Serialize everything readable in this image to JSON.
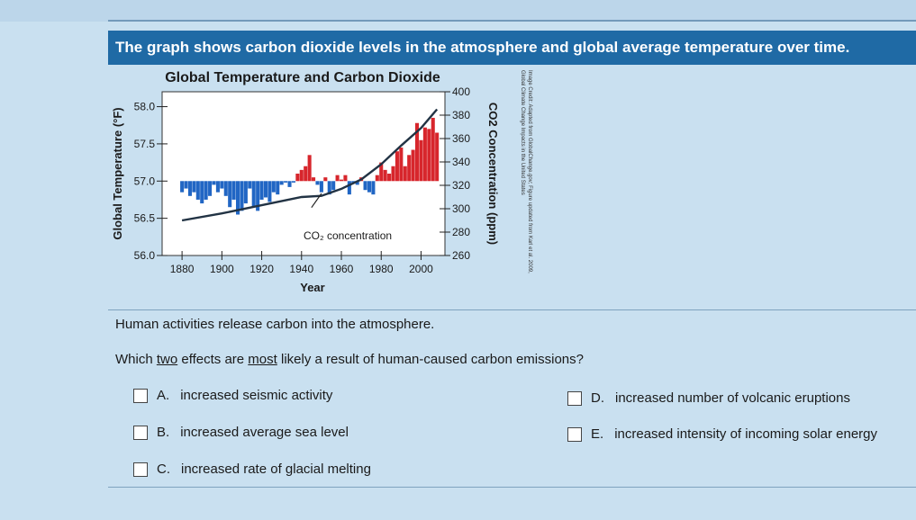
{
  "header": {
    "title": "The graph shows carbon dioxide levels in the atmosphere and global average temperature over time."
  },
  "chart_data": {
    "type": "bar",
    "title": "Global Temperature and Carbon Dioxide",
    "xlabel": "Year",
    "ylabel": "Global Temperature (°F)",
    "y2label": "CO2 Concentration (ppm)",
    "x_ticks": [
      "1880",
      "1900",
      "1920",
      "1940",
      "1960",
      "1980",
      "2000"
    ],
    "y_ticks": [
      "56.0",
      "56.5",
      "57.0",
      "57.5",
      "58.0"
    ],
    "y2_ticks": [
      "260",
      "280",
      "300",
      "320",
      "340",
      "360",
      "380",
      "400"
    ],
    "xlim": [
      1870,
      2012
    ],
    "ylim": [
      56.0,
      58.2
    ],
    "y2lim": [
      260,
      400
    ],
    "baseline": 57.0,
    "annotation": "CO₂ concentration",
    "bar_colors": {
      "below": "#2166c4",
      "above": "#d7262c"
    },
    "line_color": "#223344",
    "temperature_years": [
      1880,
      1882,
      1884,
      1886,
      1888,
      1890,
      1892,
      1894,
      1896,
      1898,
      1900,
      1902,
      1904,
      1906,
      1908,
      1910,
      1912,
      1914,
      1916,
      1918,
      1920,
      1922,
      1924,
      1926,
      1928,
      1930,
      1932,
      1934,
      1936,
      1938,
      1940,
      1942,
      1944,
      1946,
      1948,
      1950,
      1952,
      1954,
      1956,
      1958,
      1960,
      1962,
      1964,
      1966,
      1968,
      1970,
      1972,
      1974,
      1976,
      1978,
      1980,
      1982,
      1984,
      1986,
      1988,
      1990,
      1992,
      1994,
      1996,
      1998,
      2000,
      2002,
      2004,
      2006,
      2008
    ],
    "temperature_values": [
      56.85,
      56.9,
      56.8,
      56.85,
      56.75,
      56.7,
      56.75,
      56.8,
      56.95,
      56.85,
      56.9,
      56.8,
      56.65,
      56.75,
      56.55,
      56.6,
      56.7,
      56.9,
      56.65,
      56.6,
      56.75,
      56.78,
      56.72,
      56.85,
      56.82,
      56.95,
      56.98,
      56.92,
      56.98,
      57.1,
      57.15,
      57.2,
      57.35,
      57.05,
      56.95,
      56.85,
      57.05,
      56.82,
      56.88,
      57.08,
      57.02,
      57.08,
      56.82,
      56.98,
      56.95,
      57.05,
      56.88,
      56.85,
      56.82,
      57.08,
      57.25,
      57.15,
      57.1,
      57.2,
      57.4,
      57.45,
      57.2,
      57.35,
      57.42,
      57.78,
      57.55,
      57.72,
      57.7,
      57.85,
      57.65
    ],
    "co2_years": [
      1880,
      1900,
      1920,
      1940,
      1950,
      1960,
      1970,
      1980,
      1990,
      2000,
      2008
    ],
    "co2_values": [
      290,
      296,
      303,
      310,
      311,
      317,
      325,
      338,
      354,
      369,
      385
    ]
  },
  "credit": "Image Credit: Adapted from GlobalChange.gov; Figure updated from Karl et al. 2009, Global Climate Change Impacts in the United States",
  "prompt": "Human activities release carbon into the atmosphere.",
  "question": {
    "before": "Which ",
    "u1": "two",
    "middle": " effects are ",
    "u2": "most",
    "after": " likely a result of human-caused carbon emissions?"
  },
  "choices": [
    {
      "letter": "A.",
      "text": "increased seismic activity"
    },
    {
      "letter": "B.",
      "text": "increased average sea level"
    },
    {
      "letter": "C.",
      "text": "increased rate of glacial melting"
    },
    {
      "letter": "D.",
      "text": "increased number of volcanic eruptions"
    },
    {
      "letter": "E.",
      "text": "increased intensity of incoming solar energy"
    }
  ]
}
